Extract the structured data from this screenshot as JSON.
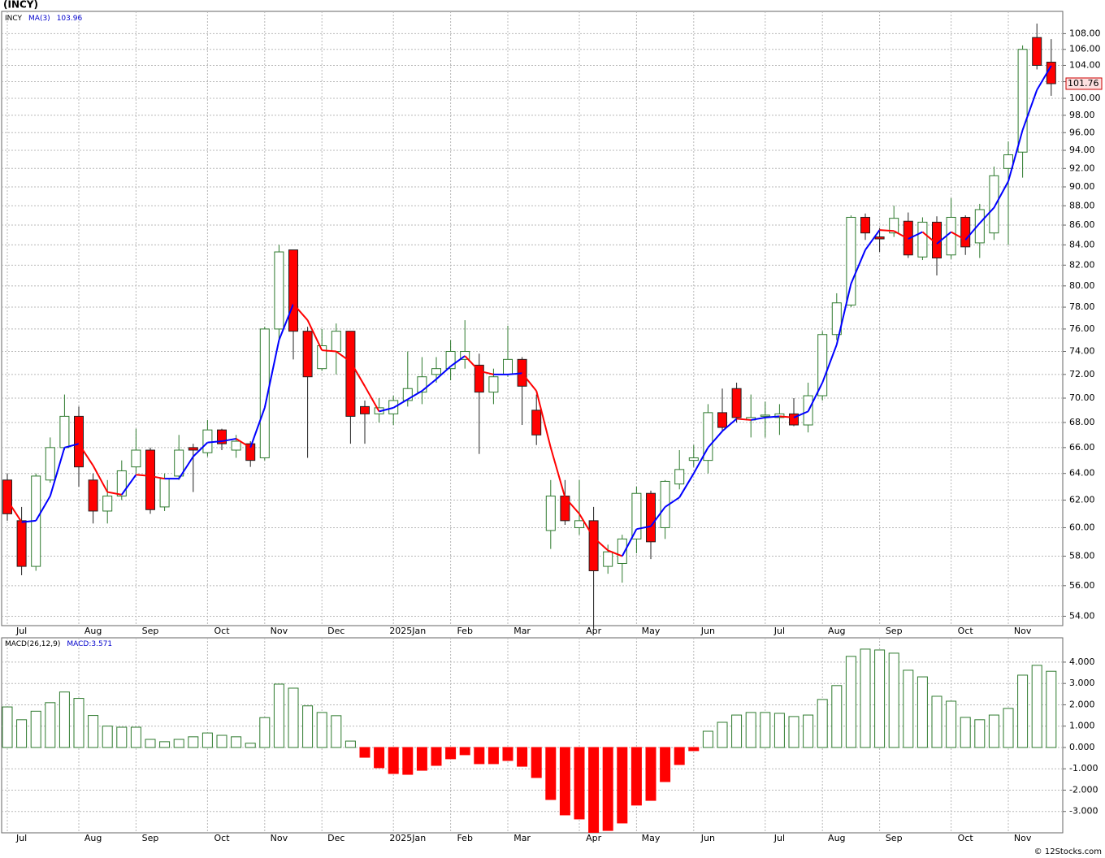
{
  "chart_data": [
    {
      "type": "candlestick",
      "title": "(INCY)",
      "symbol": "INCY",
      "log_scale": true,
      "grid": true,
      "open": [
        63.5,
        60.5,
        57.3,
        63.5,
        66,
        68.5,
        63.5,
        61.2,
        62.3,
        64.5,
        65.8,
        61.5,
        63.8,
        66,
        65.6,
        67.4,
        65.8,
        66.3,
        65.2,
        76,
        83.5,
        75.8,
        72.5,
        74,
        75.8,
        69.3,
        68.7,
        68.7,
        69.8,
        70.5,
        72,
        72.5,
        73.3,
        72.8,
        70.5,
        72,
        73.3,
        69,
        59.8,
        62.3,
        60,
        60.5,
        57.3,
        57.5,
        59.2,
        62.5,
        60,
        63.2,
        65,
        65,
        68.8,
        70.8,
        68.2,
        68.5,
        68.4,
        68.7,
        67.8,
        70.2,
        75.5,
        78.2,
        86.8,
        84.8,
        85.2,
        86.4,
        82.8,
        86.3,
        83,
        86.8,
        84.2,
        85.2,
        92,
        93.8,
        107.5,
        104.4
      ],
      "high": [
        64,
        61.5,
        64,
        66.8,
        70.3,
        69.3,
        64,
        63.5,
        65,
        67.5,
        66,
        64,
        67,
        66.3,
        68.2,
        67.5,
        67,
        66.5,
        76.2,
        84,
        83.5,
        76.2,
        76,
        76.5,
        75.8,
        69.8,
        70,
        70.2,
        74,
        73.5,
        73.5,
        75,
        76.8,
        73.8,
        72.5,
        76.3,
        73.5,
        70.3,
        63.5,
        63.5,
        63.5,
        61.5,
        58.8,
        59.5,
        63,
        62.7,
        63.5,
        65.8,
        66.2,
        69.5,
        70.8,
        71.3,
        70.3,
        69.7,
        69.5,
        70,
        71.3,
        75.8,
        79.3,
        87,
        87.2,
        85.7,
        88,
        87.3,
        86.8,
        86.9,
        88.8,
        87,
        88.2,
        92.2,
        95,
        106.5,
        109.3,
        107.3
      ],
      "low": [
        60.5,
        56.7,
        57,
        63.3,
        65.8,
        63,
        60.3,
        60.3,
        62,
        64,
        61,
        61.2,
        63.5,
        62.6,
        65.3,
        65.8,
        65.2,
        64.5,
        65,
        75,
        73.3,
        65.2,
        72.3,
        72,
        66.3,
        66.3,
        68,
        67.8,
        69.3,
        69.5,
        71.3,
        71.5,
        72.5,
        65.5,
        69.5,
        71.8,
        67.8,
        66.2,
        58.5,
        60.2,
        59.5,
        53.2,
        56.8,
        56.2,
        58.2,
        57.8,
        59.2,
        62.8,
        64.5,
        64,
        67.3,
        68,
        66.8,
        66.8,
        67,
        67.7,
        67.2,
        69.8,
        75,
        78,
        84.5,
        83.3,
        84.8,
        82.7,
        82.5,
        81,
        82.6,
        83,
        82.7,
        84.5,
        84,
        91,
        103.5,
        100.3
      ],
      "close": [
        61,
        57.3,
        63.8,
        66,
        68.5,
        64.5,
        61.2,
        62.3,
        64.2,
        65.8,
        61.3,
        63.6,
        65.8,
        65.8,
        67.4,
        66.3,
        66.5,
        65,
        76,
        83.3,
        75.8,
        71.8,
        74.5,
        75.8,
        68.5,
        68.7,
        69.2,
        69.8,
        70.8,
        71.8,
        72.5,
        74,
        74,
        70.5,
        71.8,
        73.3,
        71,
        67,
        62.3,
        60.5,
        60.5,
        57,
        58.3,
        59.2,
        62.5,
        59,
        63.4,
        64.3,
        65.2,
        68.8,
        67.6,
        68.4,
        68.4,
        68.6,
        68.7,
        67.8,
        70.2,
        75.5,
        78.4,
        86.8,
        85.2,
        84.6,
        86.7,
        83,
        86.3,
        82.7,
        86.8,
        83.8,
        87.6,
        91.2,
        93.5,
        106,
        104,
        101.76
      ],
      "up_color": "#2e7a2e",
      "down_color": "#ff0000",
      "ma": {
        "name": "MA(3)",
        "up_color": "#0000ff",
        "down_color": "#ff0000",
        "values": [
          62,
          60.4,
          60.5,
          62.3,
          66,
          66.3,
          64.6,
          62.6,
          62.4,
          63.9,
          63.8,
          63.6,
          63.6,
          65.3,
          66.4,
          66.5,
          66.7,
          66,
          69.2,
          75,
          78.3,
          76.8,
          74.1,
          74,
          73.1,
          71,
          68.9,
          69.2,
          69.9,
          70.6,
          71.6,
          72.7,
          73.6,
          72.3,
          72,
          72,
          72.1,
          70.6,
          66,
          62.2,
          61,
          59.3,
          58.4,
          58,
          59.9,
          60.1,
          61.5,
          62.2,
          64,
          66,
          67.3,
          68.3,
          68.2,
          68.4,
          68.5,
          68.4,
          68.9,
          71.3,
          74.6,
          80.2,
          83.5,
          85.5,
          85.4,
          84.6,
          85.3,
          84.1,
          85.3,
          84.5,
          86.2,
          87.8,
          90.6,
          96.3,
          101,
          103.96
        ]
      },
      "ylim": [
        53.4,
        110.9
      ],
      "yticks": [
        {
          "value": 54,
          "label": "54.00"
        },
        {
          "value": 56,
          "label": "56.00"
        },
        {
          "value": 58,
          "label": "58.00"
        },
        {
          "value": 60,
          "label": "60.00"
        },
        {
          "value": 62,
          "label": "62.00"
        },
        {
          "value": 64,
          "label": "64.00"
        },
        {
          "value": 66,
          "label": "66.00"
        },
        {
          "value": 68,
          "label": "68.00"
        },
        {
          "value": 70,
          "label": "70.00"
        },
        {
          "value": 72,
          "label": "72.00"
        },
        {
          "value": 74,
          "label": "74.00"
        },
        {
          "value": 76,
          "label": "76.00"
        },
        {
          "value": 78,
          "label": "78.00"
        },
        {
          "value": 80,
          "label": "80.00"
        },
        {
          "value": 82,
          "label": "82.00"
        },
        {
          "value": 84,
          "label": "84.00"
        },
        {
          "value": 86,
          "label": "86.00"
        },
        {
          "value": 88,
          "label": "88.00"
        },
        {
          "value": 90,
          "label": "90.00"
        },
        {
          "value": 92,
          "label": "92.00"
        },
        {
          "value": 94,
          "label": "94.00"
        },
        {
          "value": 96,
          "label": "96.00"
        },
        {
          "value": 98,
          "label": "98.00"
        },
        {
          "value": 100,
          "label": "100.00"
        },
        {
          "value": 102,
          "label": "102.00"
        },
        {
          "value": 104,
          "label": "104.00"
        },
        {
          "value": 106,
          "label": "106.00"
        },
        {
          "value": 108,
          "label": "108.00"
        }
      ],
      "xticks": [
        {
          "value": 1,
          "label": "Jul"
        },
        {
          "value": 6,
          "label": "Aug"
        },
        {
          "value": 10,
          "label": "Sep"
        },
        {
          "value": 15,
          "label": "Oct"
        },
        {
          "value": 19,
          "label": "Nov"
        },
        {
          "value": 23,
          "label": "Dec"
        },
        {
          "value": 28,
          "label": "2025Jan"
        },
        {
          "value": 32,
          "label": "Feb"
        },
        {
          "value": 36,
          "label": "Mar"
        },
        {
          "value": 41,
          "label": "Apr"
        },
        {
          "value": 45,
          "label": "May"
        },
        {
          "value": 49,
          "label": "Jun"
        },
        {
          "value": 54,
          "label": "Jul"
        },
        {
          "value": 58,
          "label": "Aug"
        },
        {
          "value": 62,
          "label": "Sep"
        },
        {
          "value": 67,
          "label": "Oct"
        },
        {
          "value": 71,
          "label": "Nov"
        }
      ]
    },
    {
      "type": "macd",
      "title": "MACD(26,12,9)",
      "value_prefix": "MACD:",
      "pos_color": "#2e7a2e",
      "neg_color": "#ff0000",
      "grid": true,
      "values": [
        1.9,
        1.3,
        1.7,
        2.1,
        2.6,
        2.3,
        1.5,
        1.0,
        0.95,
        0.95,
        0.38,
        0.27,
        0.38,
        0.5,
        0.68,
        0.57,
        0.5,
        0.2,
        1.4,
        2.97,
        2.78,
        1.95,
        1.64,
        1.49,
        0.3,
        -0.46,
        -0.95,
        -1.22,
        -1.26,
        -1.07,
        -0.84,
        -0.53,
        -0.34,
        -0.76,
        -0.76,
        -0.61,
        -0.88,
        -1.41,
        -2.44,
        -3.16,
        -3.35,
        -3.98,
        -3.89,
        -3.54,
        -2.7,
        -2.48,
        -1.6,
        -0.8,
        -0.15,
        0.76,
        1.18,
        1.52,
        1.64,
        1.64,
        1.6,
        1.45,
        1.52,
        2.25,
        2.9,
        4.27,
        4.61,
        4.57,
        4.42,
        3.62,
        3.31,
        2.4,
        2.17,
        1.41,
        1.3,
        1.52,
        1.83,
        3.39,
        3.85,
        3.571
      ],
      "ylim": [
        -4.0,
        5.14
      ],
      "yticks": [
        {
          "value": 4,
          "label": "4.000"
        },
        {
          "value": 3,
          "label": "3.000"
        },
        {
          "value": 2,
          "label": "2.000"
        },
        {
          "value": 1,
          "label": "1.000"
        },
        {
          "value": 0,
          "label": "0.000"
        },
        {
          "value": -1,
          "label": "-1.000"
        },
        {
          "value": -2,
          "label": "-2.000"
        },
        {
          "value": -3,
          "label": "-3.000"
        }
      ]
    }
  ],
  "footer": "© 12Stocks.com"
}
